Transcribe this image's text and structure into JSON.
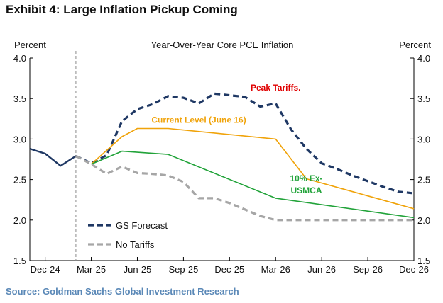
{
  "exhibit_title": "Exhibit 4: Large Inflation Pickup Coming",
  "source": "Source: Goldman Sachs Global Investment Research",
  "chart_data": {
    "type": "line",
    "title": "Year-Over-Year  Core PCE Inflation",
    "ylabel_left": "Percent",
    "ylabel_right": "Percent",
    "ylim": [
      1.5,
      4.0
    ],
    "yticks": [
      "1.5",
      "2.0",
      "2.5",
      "3.0",
      "3.5",
      "4.0"
    ],
    "x_tick_labels": [
      "Dec-24",
      "Mar-25",
      "Jun-25",
      "Sep-25",
      "Dec-25",
      "Mar-26",
      "Jun-26",
      "Sep-26",
      "Dec-26"
    ],
    "grid": false,
    "legend_position": "bottom-left",
    "divider_at": "Feb-25",
    "series": [
      {
        "name": "",
        "role": "actual",
        "style": "solid",
        "color": "#1f3864",
        "points": [
          [
            "Nov-24",
            2.88
          ],
          [
            "Dec-24",
            2.82
          ],
          [
            "Jan-25",
            2.67
          ],
          [
            "Feb-25",
            2.79
          ]
        ]
      },
      {
        "name": "GS Forecast",
        "style": "dashed",
        "color": "#1f3864",
        "points": [
          [
            "Feb-25",
            2.79
          ],
          [
            "Mar-25",
            2.7
          ],
          [
            "Apr-25",
            2.8
          ],
          [
            "May-25",
            3.22
          ],
          [
            "Jun-25",
            3.37
          ],
          [
            "Jul-25",
            3.43
          ],
          [
            "Aug-25",
            3.53
          ],
          [
            "Sep-25",
            3.51
          ],
          [
            "Oct-25",
            3.44
          ],
          [
            "Nov-25",
            3.56
          ],
          [
            "Dec-25",
            3.54
          ],
          [
            "Jan-26",
            3.52
          ],
          [
            "Feb-26",
            3.4
          ],
          [
            "Mar-26",
            3.44
          ],
          [
            "Apr-26",
            3.12
          ],
          [
            "May-26",
            2.88
          ],
          [
            "Jun-26",
            2.7
          ],
          [
            "Jul-26",
            2.63
          ],
          [
            "Aug-26",
            2.55
          ],
          [
            "Sep-26",
            2.48
          ],
          [
            "Oct-26",
            2.41
          ],
          [
            "Nov-26",
            2.35
          ],
          [
            "Dec-26",
            2.33
          ]
        ]
      },
      {
        "name": "No Tariffs",
        "style": "dashed",
        "color": "#a6a6a6",
        "points": [
          [
            "Feb-25",
            2.79
          ],
          [
            "Mar-25",
            2.69
          ],
          [
            "Apr-25",
            2.57
          ],
          [
            "May-25",
            2.66
          ],
          [
            "Jun-25",
            2.58
          ],
          [
            "Jul-25",
            2.57
          ],
          [
            "Aug-25",
            2.55
          ],
          [
            "Sep-25",
            2.47
          ],
          [
            "Oct-25",
            2.27
          ],
          [
            "Nov-25",
            2.27
          ],
          [
            "Dec-25",
            2.21
          ],
          [
            "Jan-26",
            2.13
          ],
          [
            "Feb-26",
            2.05
          ],
          [
            "Mar-26",
            2.0
          ],
          [
            "Apr-26",
            2.0
          ],
          [
            "Jun-26",
            2.0
          ],
          [
            "Sep-26",
            2.0
          ],
          [
            "Dec-26",
            2.0
          ]
        ]
      },
      {
        "name": "Current Level (June 16)",
        "style": "solid",
        "color": "#f0a30a",
        "points": [
          [
            "Mar-25",
            2.69
          ],
          [
            "May-25",
            3.03
          ],
          [
            "Jun-25",
            3.13
          ],
          [
            "Aug-25",
            3.13
          ],
          [
            "Mar-26",
            3.0
          ],
          [
            "May-26",
            2.51
          ],
          [
            "Dec-26",
            2.14
          ]
        ]
      },
      {
        "name": "10% Ex-USMCA",
        "style": "solid",
        "color": "#22a33a",
        "points": [
          [
            "Mar-25",
            2.69
          ],
          [
            "May-25",
            2.85
          ],
          [
            "Aug-25",
            2.81
          ],
          [
            "Mar-26",
            2.27
          ],
          [
            "Dec-26",
            2.03
          ]
        ]
      }
    ],
    "annotations": [
      {
        "text": "Peak Tariffs.",
        "color": "#e00000",
        "anchor": [
          "Mar-26",
          3.6
        ]
      },
      {
        "text": "Current Level (June 16)",
        "color": "#f0a30a",
        "anchor": [
          "Oct-25",
          3.2
        ]
      },
      {
        "text": "10% Ex-",
        "color": "#22a33a",
        "anchor": [
          "May-26",
          2.48
        ]
      },
      {
        "text": "USMCA",
        "color": "#22a33a",
        "anchor": [
          "May-26",
          2.33
        ]
      }
    ]
  }
}
